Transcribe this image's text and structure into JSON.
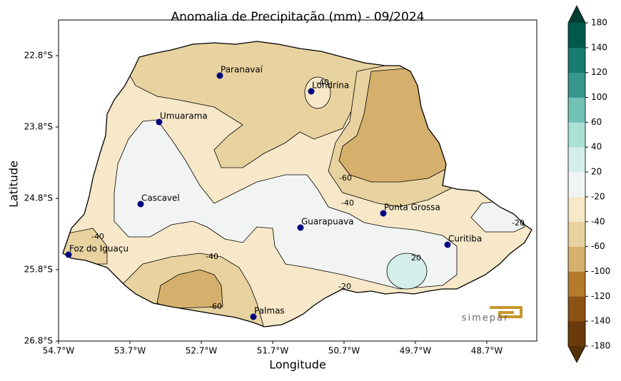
{
  "chart_data": {
    "type": "map",
    "title": "Anomalia de Precipitação (mm) - 09/2024",
    "xlabel": "Longitude",
    "ylabel": "Latitude",
    "xlim": [
      -54.7,
      -48.0
    ],
    "ylim": [
      -26.8,
      -22.3
    ],
    "xticks": [
      {
        "value": -54.7,
        "label": "54.7°W"
      },
      {
        "value": -53.7,
        "label": "53.7°W"
      },
      {
        "value": -52.7,
        "label": "52.7°W"
      },
      {
        "value": -51.7,
        "label": "51.7°W"
      },
      {
        "value": -50.7,
        "label": "50.7°W"
      },
      {
        "value": -49.7,
        "label": "49.7°W"
      },
      {
        "value": -48.7,
        "label": "48.7°W"
      }
    ],
    "yticks": [
      {
        "value": -22.8,
        "label": "22.8°S"
      },
      {
        "value": -23.8,
        "label": "23.8°S"
      },
      {
        "value": -24.8,
        "label": "24.8°S"
      },
      {
        "value": -25.8,
        "label": "25.8°S"
      },
      {
        "value": -26.8,
        "label": "26.8°S"
      }
    ],
    "marker_color": "#00007f",
    "cities": [
      {
        "name": "Paranavaí",
        "lon": -52.44,
        "lat": -23.08
      },
      {
        "name": "Londrina",
        "lon": -51.16,
        "lat": -23.3
      },
      {
        "name": "Umuarama",
        "lon": -53.29,
        "lat": -23.73
      },
      {
        "name": "Cascavel",
        "lon": -53.55,
        "lat": -24.88
      },
      {
        "name": "Guarapuava",
        "lon": -51.31,
        "lat": -25.21
      },
      {
        "name": "Ponta Grossa",
        "lon": -50.15,
        "lat": -25.01
      },
      {
        "name": "Curitiba",
        "lon": -49.25,
        "lat": -25.45
      },
      {
        "name": "Foz do Iguaçu",
        "lon": -54.56,
        "lat": -25.59
      },
      {
        "name": "Palmas",
        "lon": -51.97,
        "lat": -26.46
      }
    ],
    "contour_labels": [
      {
        "value": -40,
        "lon": -51.0,
        "lat": -23.18
      },
      {
        "value": -60,
        "lon": -50.68,
        "lat": -24.52
      },
      {
        "value": -40,
        "lon": -50.65,
        "lat": -24.87
      },
      {
        "value": -40,
        "lon": -54.15,
        "lat": -25.34
      },
      {
        "value": -40,
        "lon": -52.55,
        "lat": -25.62
      },
      {
        "value": -60,
        "lon": -52.5,
        "lat": -26.32
      },
      {
        "value": -20,
        "lon": -50.69,
        "lat": -26.04
      },
      {
        "value": 20,
        "lon": -49.69,
        "lat": -25.64
      },
      {
        "value": -20,
        "lon": -48.26,
        "lat": -25.15
      }
    ],
    "colorbar": {
      "levels": [
        -180,
        -140,
        -120,
        -100,
        -60,
        -40,
        -20,
        20,
        40,
        60,
        100,
        120,
        140,
        180
      ],
      "colors": [
        "#6b3a0b",
        "#8c5214",
        "#b67a2c",
        "#d5b06c",
        "#e8d29f",
        "#f6e8c8",
        "#f2f4f3",
        "#d4efea",
        "#abe0d7",
        "#72c2b5",
        "#37978c",
        "#177c70",
        "#005a4c"
      ],
      "extend_colors": [
        "#543005",
        "#003c30"
      ]
    },
    "logo": "simepar"
  }
}
